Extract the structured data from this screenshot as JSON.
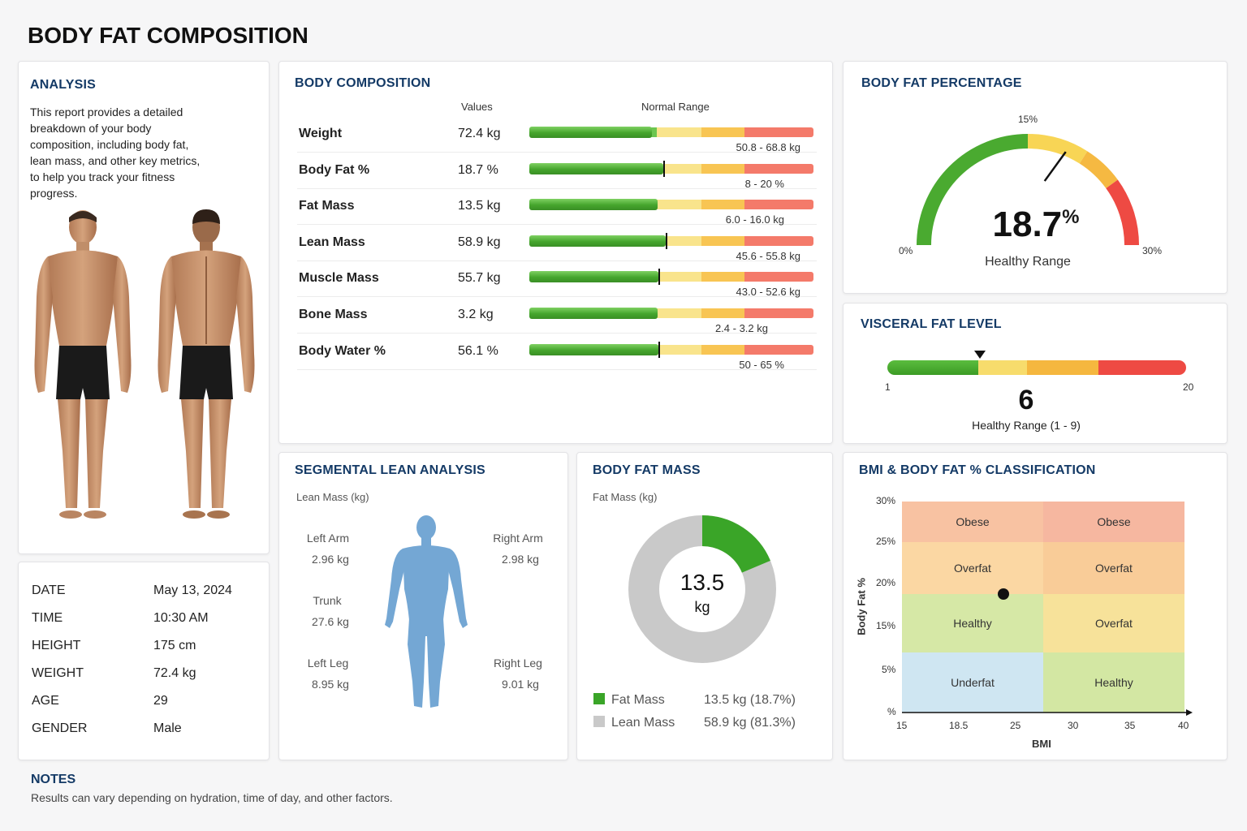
{
  "page_title": "BODY FAT COMPOSITION",
  "colors": {
    "accent": "#143a66",
    "green": "#4aaa30",
    "yellow": "#f6d55c",
    "orange": "#f5b942",
    "red": "#f0524a",
    "grey": "#c9c9c9"
  },
  "analysis": {
    "title": "ANALYSIS",
    "text": "This report provides a detailed breakdown of your body composition, including body fat, lean mass, and other key metrics, to help you track your fitness progress."
  },
  "info": [
    {
      "key": "DATE",
      "value": "May 13, 2024"
    },
    {
      "key": "TIME",
      "value": "10:30 AM"
    },
    {
      "key": "HEIGHT",
      "value": "175 cm"
    },
    {
      "key": "WEIGHT",
      "value": "72.4 kg"
    },
    {
      "key": "AGE",
      "value": "29"
    },
    {
      "key": "GENDER",
      "value": "Male"
    }
  ],
  "body_composition": {
    "title": "BODY COMPOSITION",
    "col_values": "Values",
    "col_range": "Normal Range",
    "rows": [
      {
        "label": "Weight",
        "value": "72.4 kg",
        "range": "50.8 - 68.8 kg",
        "level": 0.43,
        "marker": false
      },
      {
        "label": "Body Fat %",
        "value": "18.7 %",
        "range": "8 - 20 %",
        "level": 0.47,
        "marker": true
      },
      {
        "label": "Fat Mass",
        "value": "13.5 kg",
        "range": "6.0 - 16.0 kg",
        "level": 0.45,
        "marker": false
      },
      {
        "label": "Lean Mass",
        "value": "58.9 kg",
        "range": "45.6 - 55.8 kg",
        "level": 0.48,
        "marker": true
      },
      {
        "label": "Muscle Mass",
        "value": "55.7 kg",
        "range": "43.0 - 52.6 kg",
        "level": 0.455,
        "marker": true
      },
      {
        "label": "Bone Mass",
        "value": "3.2 kg",
        "range": "2.4 - 3.2 kg",
        "level": 0.45,
        "marker": false
      },
      {
        "label": "Body Water %",
        "value": "56.1 %",
        "range": "50 - 65 %",
        "level": 0.455,
        "marker": true
      }
    ]
  },
  "body_fat_percentage": {
    "title": "BODY FAT PERCENTAGE",
    "value": "18.7",
    "unit": "%",
    "fraction": 0.623,
    "min_label": "0%",
    "mid_label": "15%",
    "max_label": "30%",
    "status": "Healthy Range"
  },
  "visceral_fat": {
    "title": "VISCERAL FAT LEVEL",
    "value": "6",
    "min_label": "1",
    "max_label": "20",
    "fraction": 0.31,
    "status": "Healthy Range (1 - 9)"
  },
  "segmental": {
    "title": "SEGMENTAL LEAN ANALYSIS",
    "subtitle": "Lean Mass (kg)",
    "left_arm": {
      "label": "Left Arm",
      "value": "2.96 kg"
    },
    "right_arm": {
      "label": "Right Arm",
      "value": "2.98 kg"
    },
    "trunk": {
      "label": "Trunk",
      "value": "27.6 kg"
    },
    "left_leg": {
      "label": "Left Leg",
      "value": "8.95 kg"
    },
    "right_leg": {
      "label": "Right Leg",
      "value": "9.01 kg"
    }
  },
  "body_fat_mass": {
    "title": "BODY FAT MASS",
    "subtitle": "Fat Mass (kg)",
    "center_value": "13.5",
    "center_unit": "kg",
    "fat_fraction": 0.187,
    "legend": [
      {
        "label": "Fat Mass",
        "value": "13.5 kg (18.7%)"
      },
      {
        "label": "Lean Mass",
        "value": "58.9 kg (81.3%)"
      }
    ]
  },
  "bmi_classification": {
    "title": "BMI & BODY FAT % CLASSIFICATION",
    "x_label": "BMI",
    "y_label": "Body Fat %",
    "x_ticks": [
      "15",
      "18.5",
      "25",
      "30",
      "35",
      "40"
    ],
    "y_ticks": [
      "30%",
      "25%",
      "20%",
      "15%",
      "5%",
      "%"
    ],
    "zones": [
      "Obese",
      "Obese",
      "Overfat",
      "Overfat",
      "Healthy",
      "Overfat",
      "Underfat",
      "Healthy"
    ],
    "point": {
      "bmi": 23.6,
      "body_fat": 18.7
    }
  },
  "notes": {
    "title": "NOTES",
    "text": "Results can vary depending on hydration, time of day, and other factors."
  }
}
